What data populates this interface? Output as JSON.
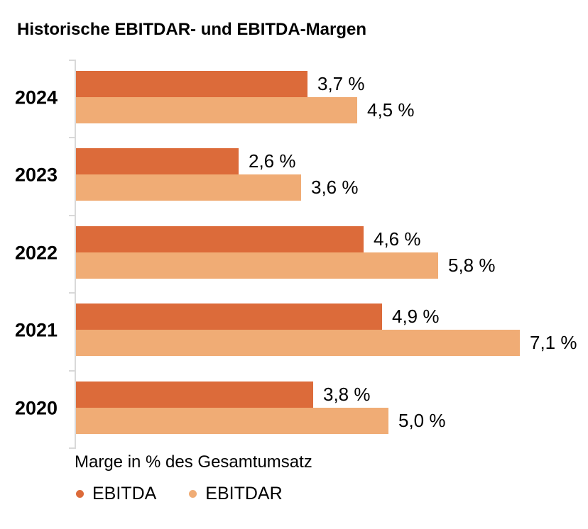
{
  "title": "Historische EBITDAR- und EBITDA-Margen",
  "chart_data": {
    "type": "bar",
    "orientation": "horizontal",
    "title": "Historische EBITDAR- und EBITDA-Margen",
    "categories": [
      "2024",
      "2023",
      "2022",
      "2021",
      "2020"
    ],
    "series": [
      {
        "name": "EBITDA",
        "color": "#dc6b3a",
        "values": [
          3.7,
          2.6,
          4.6,
          4.9,
          3.8
        ],
        "labels": [
          "3,7 %",
          "2,6 %",
          "4,6 %",
          "4,9 %",
          "3,8 %"
        ]
      },
      {
        "name": "EBITDAR",
        "color": "#f0ac75",
        "values": [
          4.5,
          3.6,
          5.8,
          7.1,
          5.0
        ],
        "labels": [
          "4,5 %",
          "3,6 %",
          "5,8 %",
          "7,1 %",
          "5,0 %"
        ]
      }
    ],
    "xlabel": "Marge in % des Gesamtumsatz",
    "xlim": [
      0,
      8
    ],
    "grid": false,
    "legend_position": "bottom",
    "value_labels_shown": true
  },
  "legend": {
    "items": [
      {
        "label": "EBITDA",
        "color": "#dc6b3a"
      },
      {
        "label": "EBITDAR",
        "color": "#f0ac75"
      }
    ]
  },
  "colors": {
    "ebitda": "#dc6b3a",
    "ebitdar": "#f0ac75",
    "axis": "#d9d9d9",
    "text": "#000000",
    "background": "#ffffff"
  }
}
